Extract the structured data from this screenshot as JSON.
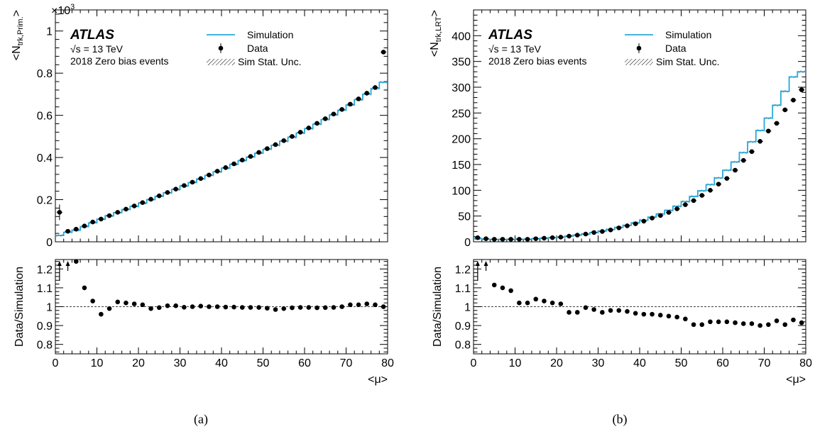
{
  "figure": {
    "colors": {
      "simulation": "#29a9d8",
      "data": "#000000",
      "ratio_ref": "#000000"
    }
  },
  "chart_data": [
    {
      "id": "a",
      "type": "line",
      "caption": "(a)",
      "ylabel_main": "<N",
      "ylabel_sub": "trk,Prim.",
      "ylabel_close": ">",
      "exponent_label": "×10",
      "exponent_power": "3",
      "ylim": [
        0,
        1.1
      ],
      "yticks": [
        "0",
        "0.2",
        "0.4",
        "0.6",
        "0.8",
        "1"
      ],
      "ytick_values": [
        0,
        0.2,
        0.4,
        0.6,
        0.8,
        1.0
      ],
      "ratio_ylabel": "Data/Simulation",
      "ratio_ylim": [
        0.75,
        1.25
      ],
      "ratio_yticks": [
        "0.8",
        "0.9",
        "1",
        "1.1",
        "1.2"
      ],
      "ratio_ytick_values": [
        0.8,
        0.9,
        1.0,
        1.1,
        1.2
      ],
      "xlabel": "<μ>",
      "xlim": [
        0,
        80
      ],
      "xticks": [
        "0",
        "10",
        "20",
        "30",
        "40",
        "50",
        "60",
        "70",
        "80"
      ],
      "xtick_values": [
        0,
        10,
        20,
        30,
        40,
        50,
        60,
        70,
        80
      ],
      "atlas_label": "ATLAS",
      "energy_label": "√s = 13 TeV",
      "sample_label": "2018 Zero bias events",
      "legend": {
        "simulation": "Simulation",
        "data": "Data",
        "stat": "Sim Stat. Unc."
      },
      "x": [
        1,
        3,
        5,
        7,
        9,
        11,
        13,
        15,
        17,
        19,
        21,
        23,
        25,
        27,
        29,
        31,
        33,
        35,
        37,
        39,
        41,
        43,
        45,
        47,
        49,
        51,
        53,
        55,
        57,
        59,
        61,
        63,
        65,
        67,
        69,
        71,
        73,
        75,
        77,
        79
      ],
      "simulation": [
        0.03,
        0.045,
        0.055,
        0.072,
        0.09,
        0.107,
        0.123,
        0.138,
        0.153,
        0.168,
        0.183,
        0.2,
        0.216,
        0.232,
        0.248,
        0.265,
        0.281,
        0.298,
        0.315,
        0.332,
        0.349,
        0.367,
        0.385,
        0.402,
        0.42,
        0.439,
        0.458,
        0.477,
        0.496,
        0.516,
        0.537,
        0.558,
        0.58,
        0.602,
        0.624,
        0.649,
        0.674,
        0.7,
        0.727,
        0.757
      ],
      "data": [
        0.14,
        0.05,
        0.06,
        0.075,
        0.094,
        0.108,
        0.124,
        0.14,
        0.155,
        0.17,
        0.186,
        0.202,
        0.218,
        0.234,
        0.25,
        0.267,
        0.283,
        0.3,
        0.317,
        0.335,
        0.352,
        0.37,
        0.388,
        0.405,
        0.424,
        0.442,
        0.461,
        0.48,
        0.5,
        0.52,
        0.54,
        0.562,
        0.584,
        0.606,
        0.628,
        0.653,
        0.678,
        0.705,
        0.732,
        0.9
      ],
      "ratio": [
        2.5,
        2.5,
        1.24,
        1.1,
        1.03,
        0.96,
        0.99,
        1.025,
        1.02,
        1.015,
        1.01,
        0.99,
        0.995,
        1.005,
        1.005,
        0.997,
        1.0,
        1.003,
        1.0,
        1.0,
        0.998,
        0.998,
        0.996,
        0.996,
        0.996,
        0.992,
        0.985,
        0.99,
        0.994,
        0.996,
        0.996,
        0.994,
        0.995,
        0.996,
        1.0,
        1.01,
        1.01,
        1.015,
        1.01,
        1.0
      ]
    },
    {
      "id": "b",
      "type": "line",
      "caption": "(b)",
      "ylabel_main": "<N",
      "ylabel_sub": "trk,LRT",
      "ylabel_close": ">",
      "ylim": [
        0,
        450
      ],
      "yticks": [
        "0",
        "50",
        "100",
        "150",
        "200",
        "250",
        "300",
        "350",
        "400"
      ],
      "ytick_values": [
        0,
        50,
        100,
        150,
        200,
        250,
        300,
        350,
        400
      ],
      "ratio_ylabel": "Data/Simulation",
      "ratio_ylim": [
        0.75,
        1.25
      ],
      "ratio_yticks": [
        "0.8",
        "0.9",
        "1",
        "1.1",
        "1.2"
      ],
      "ratio_ytick_values": [
        0.8,
        0.9,
        1.0,
        1.1,
        1.2
      ],
      "xlabel": "<μ>",
      "xlim": [
        0,
        80
      ],
      "xticks": [
        "0",
        "10",
        "20",
        "30",
        "40",
        "50",
        "60",
        "70",
        "80"
      ],
      "xtick_values": [
        0,
        10,
        20,
        30,
        40,
        50,
        60,
        70,
        80
      ],
      "atlas_label": "ATLAS",
      "energy_label": "√s = 13 TeV",
      "sample_label": "2018 Zero bias events",
      "legend": {
        "simulation": "Simulation",
        "data": "Data",
        "stat": "Sim Stat. Unc."
      },
      "x": [
        1,
        3,
        5,
        7,
        9,
        11,
        13,
        15,
        17,
        19,
        21,
        23,
        25,
        27,
        29,
        31,
        33,
        35,
        37,
        39,
        41,
        43,
        45,
        47,
        49,
        51,
        53,
        55,
        57,
        59,
        61,
        63,
        65,
        67,
        69,
        71,
        73,
        75,
        77,
        79
      ],
      "simulation": [
        6,
        5,
        4.5,
        4.5,
        4.5,
        5,
        5,
        6,
        7,
        8,
        9,
        11,
        13,
        15,
        18,
        21,
        24,
        28,
        32,
        37,
        42,
        48,
        54,
        61,
        69,
        78,
        88,
        99,
        111,
        124,
        139,
        155,
        173,
        194,
        216,
        240,
        265,
        292,
        320,
        330
      ],
      "data": [
        8,
        6,
        5,
        5,
        5,
        5,
        5,
        6,
        7,
        8,
        9,
        11,
        13,
        15,
        18,
        20,
        23,
        27,
        31,
        35,
        40,
        46,
        51,
        57,
        64,
        72,
        80,
        90,
        100,
        112,
        123,
        139,
        158,
        175,
        195,
        215,
        230,
        256,
        275,
        295
      ],
      "ratio": [
        2.5,
        2.5,
        1.115,
        1.1,
        1.085,
        1.02,
        1.02,
        1.04,
        1.03,
        1.02,
        1.015,
        0.97,
        0.97,
        0.995,
        0.985,
        0.97,
        0.98,
        0.98,
        0.975,
        0.965,
        0.96,
        0.96,
        0.955,
        0.95,
        0.945,
        0.935,
        0.905,
        0.905,
        0.92,
        0.92,
        0.92,
        0.915,
        0.91,
        0.91,
        0.9,
        0.905,
        0.925,
        0.905,
        0.93,
        0.915
      ]
    }
  ]
}
